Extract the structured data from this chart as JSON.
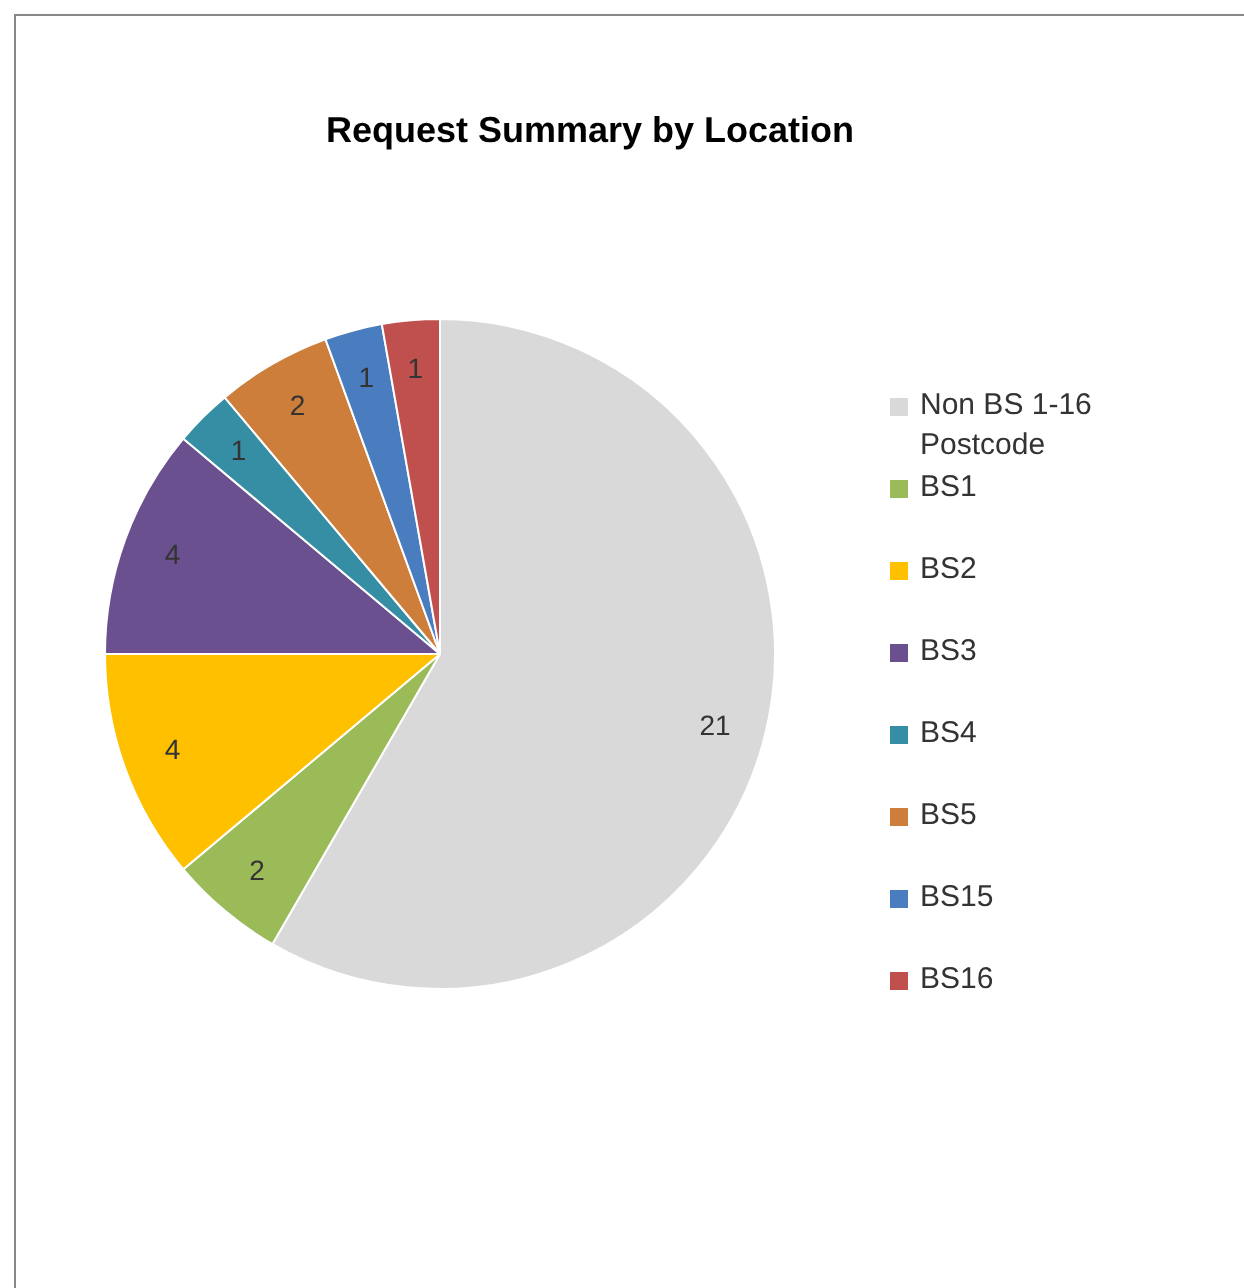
{
  "chart_data": {
    "type": "pie",
    "title": "Request Summary by Location",
    "categories": [
      "Non BS 1-16 Postcode",
      "BS1",
      "BS2",
      "BS3",
      "BS4",
      "BS5",
      "BS15",
      "BS16"
    ],
    "values": [
      21,
      2,
      4,
      4,
      1,
      2,
      1,
      1
    ],
    "colors": [
      "#d9d9d9",
      "#9bbb59",
      "#ffc000",
      "#6a508f",
      "#358ea3",
      "#cc7e3a",
      "#4a7dc0",
      "#c0504d"
    ],
    "data_labels": true,
    "legend": "right"
  }
}
